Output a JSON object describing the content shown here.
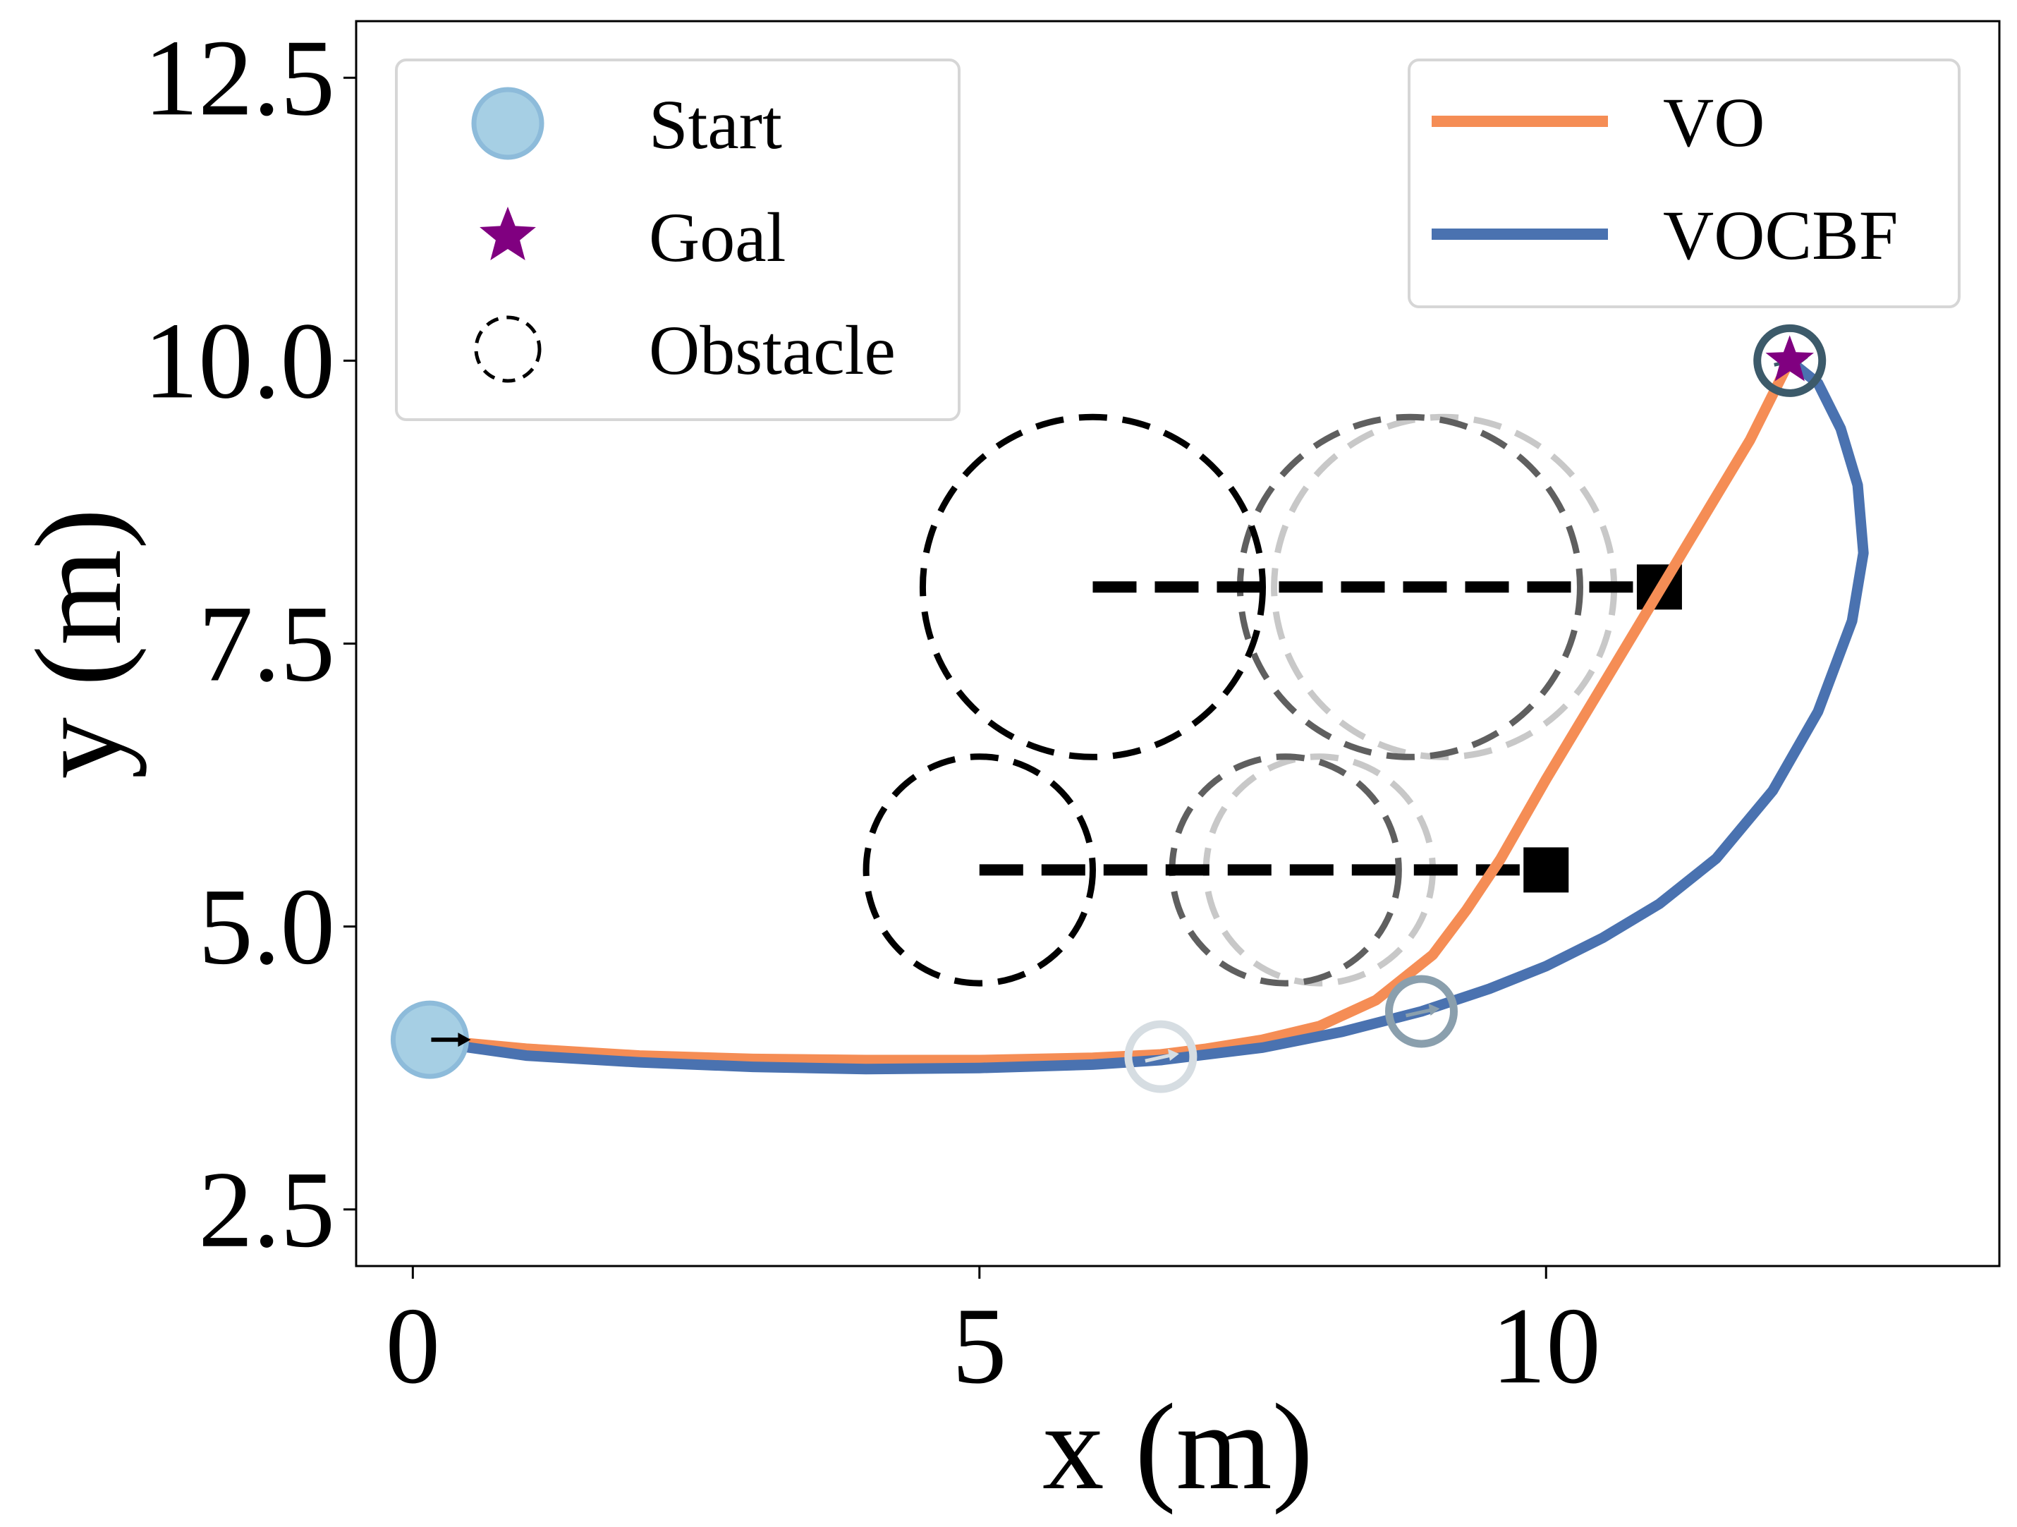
{
  "chart_data": {
    "type": "line",
    "title": "",
    "xlabel": "x (m)",
    "ylabel": "y (m)",
    "xlim": [
      -0.5,
      14.0
    ],
    "ylim": [
      2.0,
      13.0
    ],
    "xticks": [
      0,
      5,
      10
    ],
    "xtick_labels": [
      "0",
      "5",
      "10"
    ],
    "yticks": [
      2.5,
      5.0,
      7.5,
      10.0,
      12.5
    ],
    "ytick_labels": [
      "2.5",
      "5.0",
      "7.5",
      "10.0",
      "12.5"
    ],
    "grid": false,
    "colors": {
      "vo": "#F58D55",
      "vocbf": "#4A72B0",
      "start": "#A6CFE4",
      "goal": "#800080",
      "obstacle": "#000000"
    },
    "series": [
      {
        "name": "VO",
        "color": "#F58D55",
        "x": [
          0.15,
          1.0,
          2.0,
          3.0,
          4.0,
          5.0,
          6.0,
          6.6,
          7.0,
          7.5,
          8.0,
          8.5,
          9.0,
          9.3,
          9.6,
          9.8,
          10.0,
          10.3,
          10.6,
          10.9,
          11.2,
          11.5,
          11.8,
          12.0,
          12.15
        ],
        "y": [
          4.0,
          3.92,
          3.86,
          3.83,
          3.82,
          3.82,
          3.84,
          3.87,
          3.92,
          4.0,
          4.12,
          4.35,
          4.75,
          5.15,
          5.6,
          5.95,
          6.3,
          6.8,
          7.3,
          7.8,
          8.3,
          8.8,
          9.3,
          9.7,
          10.0
        ]
      },
      {
        "name": "VOCBF",
        "color": "#4A72B0",
        "x": [
          0.15,
          1.0,
          2.0,
          3.0,
          4.0,
          5.0,
          6.0,
          6.6,
          7.5,
          8.2,
          8.9,
          9.5,
          10.0,
          10.5,
          11.0,
          11.5,
          12.0,
          12.4,
          12.7,
          12.8,
          12.75,
          12.6,
          12.4,
          12.15
        ],
        "y": [
          3.98,
          3.86,
          3.8,
          3.76,
          3.74,
          3.75,
          3.78,
          3.82,
          3.93,
          4.07,
          4.25,
          4.45,
          4.65,
          4.9,
          5.2,
          5.6,
          6.2,
          6.9,
          7.7,
          8.3,
          8.9,
          9.4,
          9.8,
          10.0
        ]
      }
    ],
    "markers": {
      "start": {
        "label": "Start",
        "x": 0.15,
        "y": 4.0
      },
      "goal": {
        "label": "Goal",
        "x": 12.15,
        "y": 10.0
      },
      "agent_snapshots": [
        {
          "x": 6.6,
          "y": 3.85,
          "shade": "#D6DDE2"
        },
        {
          "x": 8.9,
          "y": 4.25,
          "shade": "#8A9FAD"
        },
        {
          "x": 12.15,
          "y": 10.0,
          "shade": "#3C5A6A"
        }
      ]
    },
    "obstacles": [
      {
        "label": "Obstacle",
        "path_start": {
          "x": 6.0,
          "y": 8.0
        },
        "path_end": {
          "x": 11.0,
          "y": 8.0
        },
        "radius": 1.5,
        "snapshots": [
          {
            "x": 6.0,
            "y": 8.0,
            "shade": "#000000"
          },
          {
            "x": 8.8,
            "y": 8.0,
            "shade": "#5F5F5F"
          },
          {
            "x": 9.1,
            "y": 8.0,
            "shade": "#C8C8C8"
          }
        ]
      },
      {
        "label": "Obstacle",
        "path_start": {
          "x": 5.0,
          "y": 5.5
        },
        "path_end": {
          "x": 10.0,
          "y": 5.5
        },
        "radius": 1.0,
        "snapshots": [
          {
            "x": 5.0,
            "y": 5.5,
            "shade": "#000000"
          },
          {
            "x": 7.7,
            "y": 5.5,
            "shade": "#5F5F5F"
          },
          {
            "x": 8.0,
            "y": 5.5,
            "shade": "#C8C8C8"
          }
        ]
      }
    ],
    "legends": [
      {
        "location": "upper-left",
        "entries": [
          {
            "label": "Start",
            "symbol": "circle"
          },
          {
            "label": "Goal",
            "symbol": "star"
          },
          {
            "label": "Obstacle",
            "symbol": "dashed-circle"
          }
        ]
      },
      {
        "location": "upper-right",
        "entries": [
          {
            "label": "VO",
            "symbol": "line"
          },
          {
            "label": "VOCBF",
            "symbol": "line"
          }
        ]
      }
    ]
  }
}
